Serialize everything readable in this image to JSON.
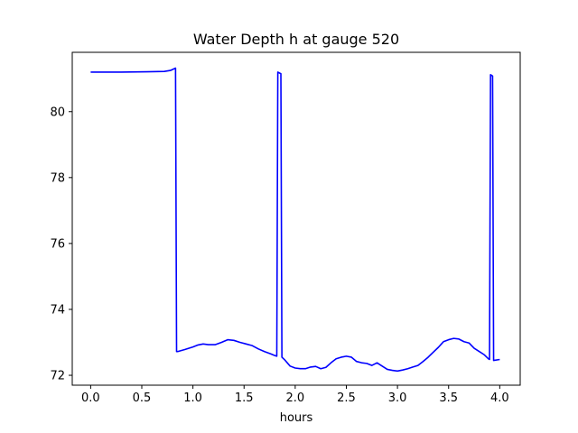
{
  "chart_data": {
    "type": "line",
    "title": "Water Depth h at gauge 520",
    "xlabel": "hours",
    "ylabel": "",
    "xlim": [
      -0.18,
      4.2
    ],
    "ylim": [
      71.7,
      81.8
    ],
    "xticks": [
      0.0,
      0.5,
      1.0,
      1.5,
      2.0,
      2.5,
      3.0,
      3.5,
      4.0
    ],
    "xtick_labels": [
      "0.0",
      "0.5",
      "1.0",
      "1.5",
      "2.0",
      "2.5",
      "3.0",
      "3.5",
      "4.0"
    ],
    "yticks": [
      72,
      74,
      76,
      78,
      80
    ],
    "ytick_labels": [
      "72",
      "74",
      "76",
      "78",
      "80"
    ],
    "grid": false,
    "series": [
      {
        "color": "#0000ff",
        "x": [
          0.0,
          0.3,
          0.55,
          0.72,
          0.78,
          0.83,
          0.84,
          0.85,
          0.92,
          1.0,
          1.05,
          1.1,
          1.15,
          1.22,
          1.28,
          1.34,
          1.4,
          1.46,
          1.52,
          1.58,
          1.64,
          1.7,
          1.76,
          1.8,
          1.82,
          1.83,
          1.86,
          1.87,
          1.9,
          1.95,
          2.0,
          2.05,
          2.1,
          2.15,
          2.2,
          2.25,
          2.3,
          2.35,
          2.4,
          2.45,
          2.5,
          2.55,
          2.6,
          2.65,
          2.7,
          2.75,
          2.8,
          2.85,
          2.9,
          2.95,
          3.0,
          3.05,
          3.1,
          3.15,
          3.2,
          3.25,
          3.3,
          3.35,
          3.4,
          3.45,
          3.5,
          3.55,
          3.6,
          3.65,
          3.7,
          3.75,
          3.8,
          3.85,
          3.89,
          3.9,
          3.91,
          3.93,
          3.94,
          4.0
        ],
        "y": [
          81.2,
          81.2,
          81.21,
          81.22,
          81.25,
          81.32,
          72.72,
          72.72,
          72.78,
          72.86,
          72.92,
          72.95,
          72.93,
          72.93,
          73.0,
          73.08,
          73.06,
          73.0,
          72.95,
          72.9,
          72.8,
          72.72,
          72.65,
          72.6,
          72.58,
          81.2,
          81.15,
          72.55,
          72.46,
          72.28,
          72.22,
          72.2,
          72.2,
          72.25,
          72.27,
          72.2,
          72.24,
          72.38,
          72.5,
          72.55,
          72.58,
          72.55,
          72.42,
          72.38,
          72.36,
          72.3,
          72.38,
          72.28,
          72.18,
          72.15,
          72.13,
          72.16,
          72.2,
          72.25,
          72.3,
          72.42,
          72.55,
          72.7,
          72.85,
          73.02,
          73.08,
          73.12,
          73.1,
          73.02,
          72.98,
          72.82,
          72.72,
          72.62,
          72.5,
          72.48,
          81.12,
          81.08,
          72.45,
          72.48
        ]
      }
    ]
  }
}
